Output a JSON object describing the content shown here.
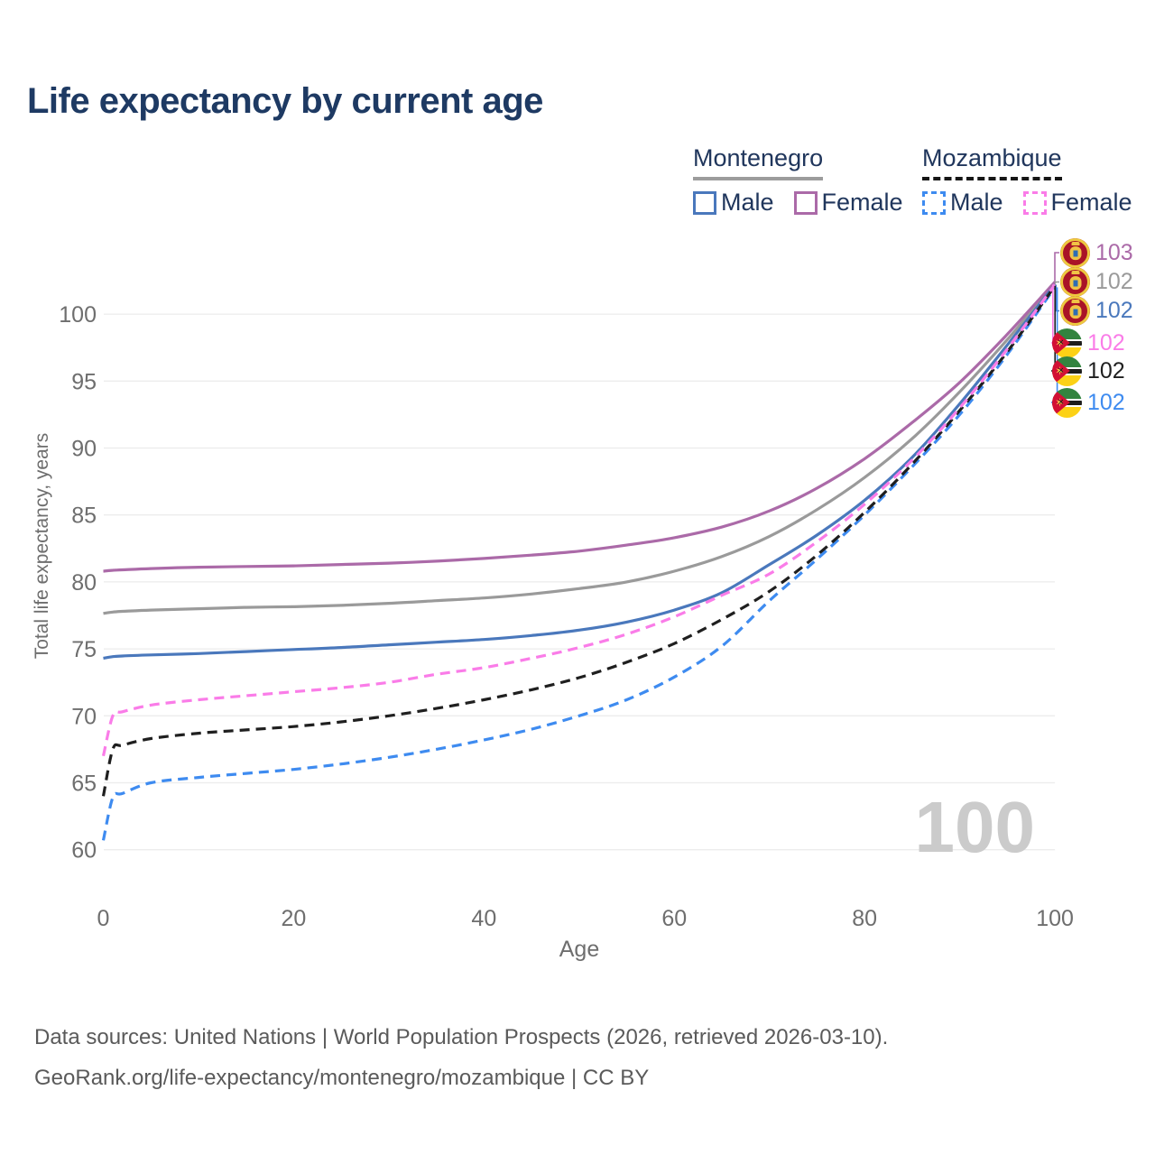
{
  "title": "Life expectancy by current age",
  "legend": {
    "groups": [
      {
        "name": "Montenegro",
        "line_style": "solid",
        "line_color": "#9c9c9c",
        "items": [
          {
            "label": "Male",
            "color": "#4a78bc",
            "dashed": false
          },
          {
            "label": "Female",
            "color": "#ab6aa8",
            "dashed": false
          }
        ]
      },
      {
        "name": "Mozambique",
        "line_style": "dashed",
        "line_color": "#161616",
        "items": [
          {
            "label": "Male",
            "color": "#3e8bf0",
            "dashed": true
          },
          {
            "label": "Female",
            "color": "#fa7ce8",
            "dashed": true
          }
        ]
      }
    ]
  },
  "watermark": "100",
  "end_labels": [
    {
      "value": "103",
      "country": "montenegro",
      "series": "Montenegro Female",
      "color": "#ab6aa8"
    },
    {
      "value": "102",
      "country": "montenegro",
      "series": "Montenegro Total",
      "color": "#9a9a9a"
    },
    {
      "value": "102",
      "country": "montenegro",
      "series": "Montenegro Male",
      "color": "#4a78bc"
    },
    {
      "value": "102",
      "country": "mozambique",
      "series": "Mozambique Female",
      "color": "#fa7ce8"
    },
    {
      "value": "102",
      "country": "mozambique",
      "series": "Mozambique Total",
      "color": "#1f1f1f"
    },
    {
      "value": "102",
      "country": "mozambique",
      "series": "Mozambique Male",
      "color": "#3e8bf0"
    }
  ],
  "footer": {
    "line1": "Data sources: United Nations | World Population Prospects (2026, retrieved 2026-03-10).",
    "line2": "GeoRank.org/life-expectancy/montenegro/mozambique | CC BY"
  },
  "flag_colors": {
    "montenegro": {
      "field": "#a91327",
      "border": "#edc93f",
      "crest": "#f0c345",
      "shield": "#2f6db3"
    },
    "mozambique": {
      "green": "#33843f",
      "white": "#ffffff",
      "black": "#1d1d1b",
      "yellow": "#fcd116",
      "red": "#d21034",
      "star": "#ffd84d"
    }
  },
  "chart_data": {
    "type": "line",
    "title": "Life expectancy by current age",
    "xlabel": "Age",
    "ylabel": "Total life expectancy, years",
    "x_ticks": [
      0,
      20,
      40,
      60,
      80,
      100
    ],
    "y_ticks": [
      60,
      65,
      70,
      75,
      80,
      85,
      90,
      95,
      100
    ],
    "xlim": [
      0,
      100
    ],
    "ylim": [
      60,
      100
    ],
    "grid": "horizontal",
    "legend_position": "top-right",
    "x": [
      0,
      1,
      2,
      5,
      10,
      15,
      20,
      25,
      30,
      35,
      40,
      45,
      50,
      55,
      60,
      65,
      70,
      75,
      80,
      85,
      90,
      95,
      100
    ],
    "series": [
      {
        "name": "Montenegro Female",
        "country": "Montenegro",
        "sex": "Female",
        "color": "#ab6aa8",
        "dashed": false,
        "end_label": "103",
        "values": [
          80.8,
          80.87,
          80.9,
          81.0,
          81.1,
          81.15,
          81.2,
          81.3,
          81.4,
          81.55,
          81.75,
          82.0,
          82.3,
          82.75,
          83.3,
          84.1,
          85.3,
          87.0,
          89.2,
          91.9,
          94.9,
          98.5,
          102.4
        ]
      },
      {
        "name": "Montenegro Total",
        "country": "Montenegro",
        "sex": "All",
        "color": "#9a9a9a",
        "dashed": false,
        "end_label": "102",
        "values": [
          77.65,
          77.75,
          77.8,
          77.9,
          78.0,
          78.1,
          78.15,
          78.25,
          78.4,
          78.6,
          78.8,
          79.1,
          79.5,
          80.0,
          80.8,
          81.9,
          83.4,
          85.4,
          87.8,
          90.7,
          94.2,
          98.1,
          102.3
        ]
      },
      {
        "name": "Montenegro Male",
        "country": "Montenegro",
        "sex": "Male",
        "color": "#4a78bc",
        "dashed": false,
        "end_label": "102",
        "values": [
          74.3,
          74.42,
          74.47,
          74.55,
          74.65,
          74.8,
          74.95,
          75.1,
          75.3,
          75.5,
          75.7,
          76.0,
          76.4,
          77.0,
          77.9,
          79.2,
          81.3,
          83.5,
          86.1,
          89.3,
          93.3,
          97.7,
          102.2
        ]
      },
      {
        "name": "Mozambique Female",
        "country": "Mozambique",
        "sex": "Female",
        "color": "#fa7ce8",
        "dashed": true,
        "end_label": "102",
        "values": [
          67.0,
          70.0,
          70.3,
          70.8,
          71.2,
          71.5,
          71.8,
          72.1,
          72.5,
          73.1,
          73.6,
          74.3,
          75.1,
          76.1,
          77.4,
          79.0,
          80.6,
          83.0,
          85.8,
          89.1,
          93.0,
          97.4,
          102.2
        ]
      },
      {
        "name": "Mozambique Total",
        "country": "Mozambique",
        "sex": "All",
        "color": "#1f1f1f",
        "dashed": true,
        "end_label": "102",
        "values": [
          64.0,
          67.5,
          67.8,
          68.3,
          68.7,
          68.95,
          69.2,
          69.55,
          70.0,
          70.55,
          71.2,
          71.95,
          72.85,
          74.0,
          75.4,
          77.2,
          79.3,
          82.0,
          85.2,
          88.8,
          92.8,
          97.2,
          102.1
        ]
      },
      {
        "name": "Mozambique Male",
        "country": "Mozambique",
        "sex": "Male",
        "color": "#3e8bf0",
        "dashed": true,
        "end_label": "102",
        "values": [
          60.7,
          63.9,
          64.2,
          65.0,
          65.4,
          65.7,
          66.0,
          66.4,
          66.9,
          67.5,
          68.2,
          69.0,
          70.0,
          71.2,
          72.9,
          75.2,
          78.6,
          81.7,
          85.0,
          88.6,
          92.5,
          97.0,
          102.0
        ]
      }
    ]
  }
}
